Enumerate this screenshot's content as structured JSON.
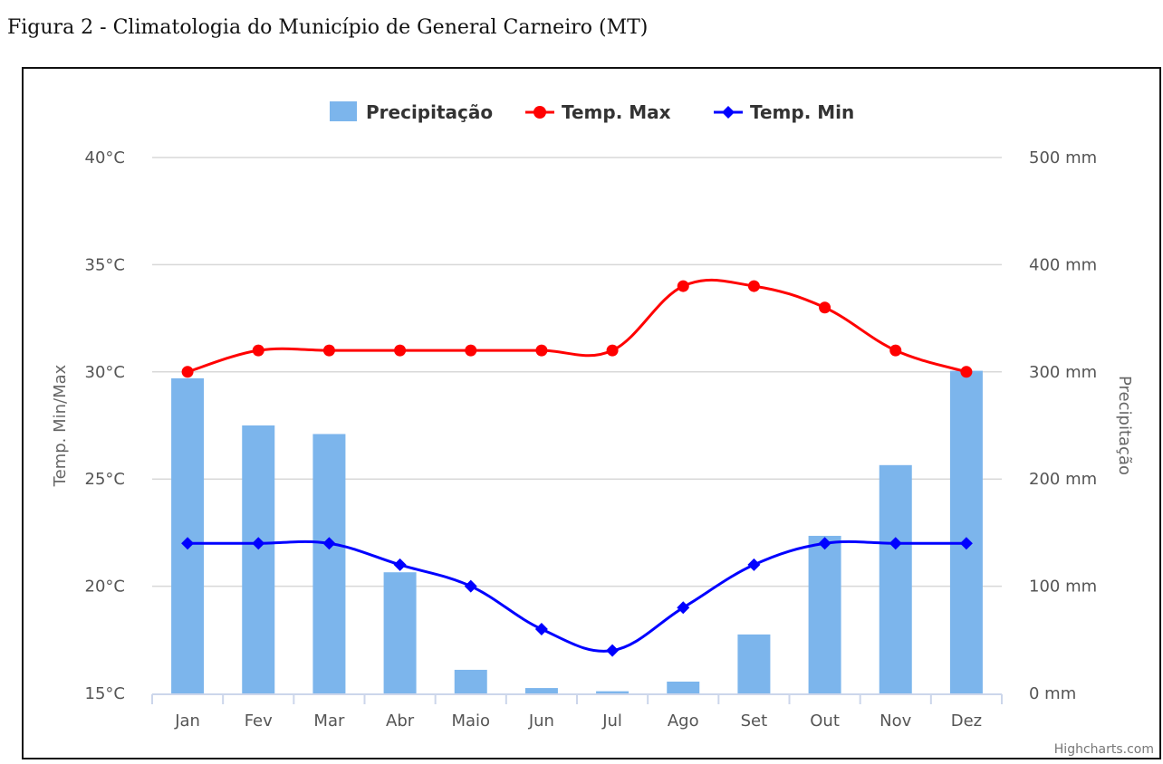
{
  "figure_caption": "Figura 2 - Climatologia do Município de General Carneiro (MT)",
  "credits": "Highcharts.com",
  "colors": {
    "precip": "#7cb5ec",
    "tmax": "#ff0000",
    "tmin": "#0000ff",
    "grid": "#d8d8d8",
    "axis": "#ccd6eb"
  },
  "chart_data": {
    "type": "bar",
    "categories": [
      "Jan",
      "Fev",
      "Mar",
      "Abr",
      "Maio",
      "Jun",
      "Jul",
      "Ago",
      "Set",
      "Out",
      "Nov",
      "Dez"
    ],
    "legend": {
      "position": "top-center",
      "items": [
        "Precipitação",
        "Temp. Max",
        "Temp. Min"
      ]
    },
    "y_left": {
      "label": "Temp. Min/Max",
      "range": [
        15,
        40
      ],
      "ticks": [
        "15°C",
        "20°C",
        "25°C",
        "30°C",
        "35°C",
        "40°C"
      ]
    },
    "y_right": {
      "label": "Precipitação",
      "range": [
        0,
        500
      ],
      "ticks": [
        "0 mm",
        "100 mm",
        "200 mm",
        "300 mm",
        "400 mm",
        "500 mm"
      ]
    },
    "grid": true,
    "series": [
      {
        "name": "Precipitação",
        "type": "column",
        "axis": "right",
        "values": [
          294,
          250,
          242,
          113,
          22,
          5,
          2,
          11,
          55,
          147,
          213,
          301
        ]
      },
      {
        "name": "Temp. Max",
        "type": "spline",
        "axis": "left",
        "marker": "circle",
        "values": [
          30,
          31,
          31,
          31,
          31,
          31,
          31,
          34,
          34,
          33,
          31,
          30
        ]
      },
      {
        "name": "Temp. Min",
        "type": "spline",
        "axis": "left",
        "marker": "diamond",
        "values": [
          22,
          22,
          22,
          21,
          20,
          18,
          17,
          19,
          21,
          22,
          22,
          22
        ]
      }
    ]
  }
}
